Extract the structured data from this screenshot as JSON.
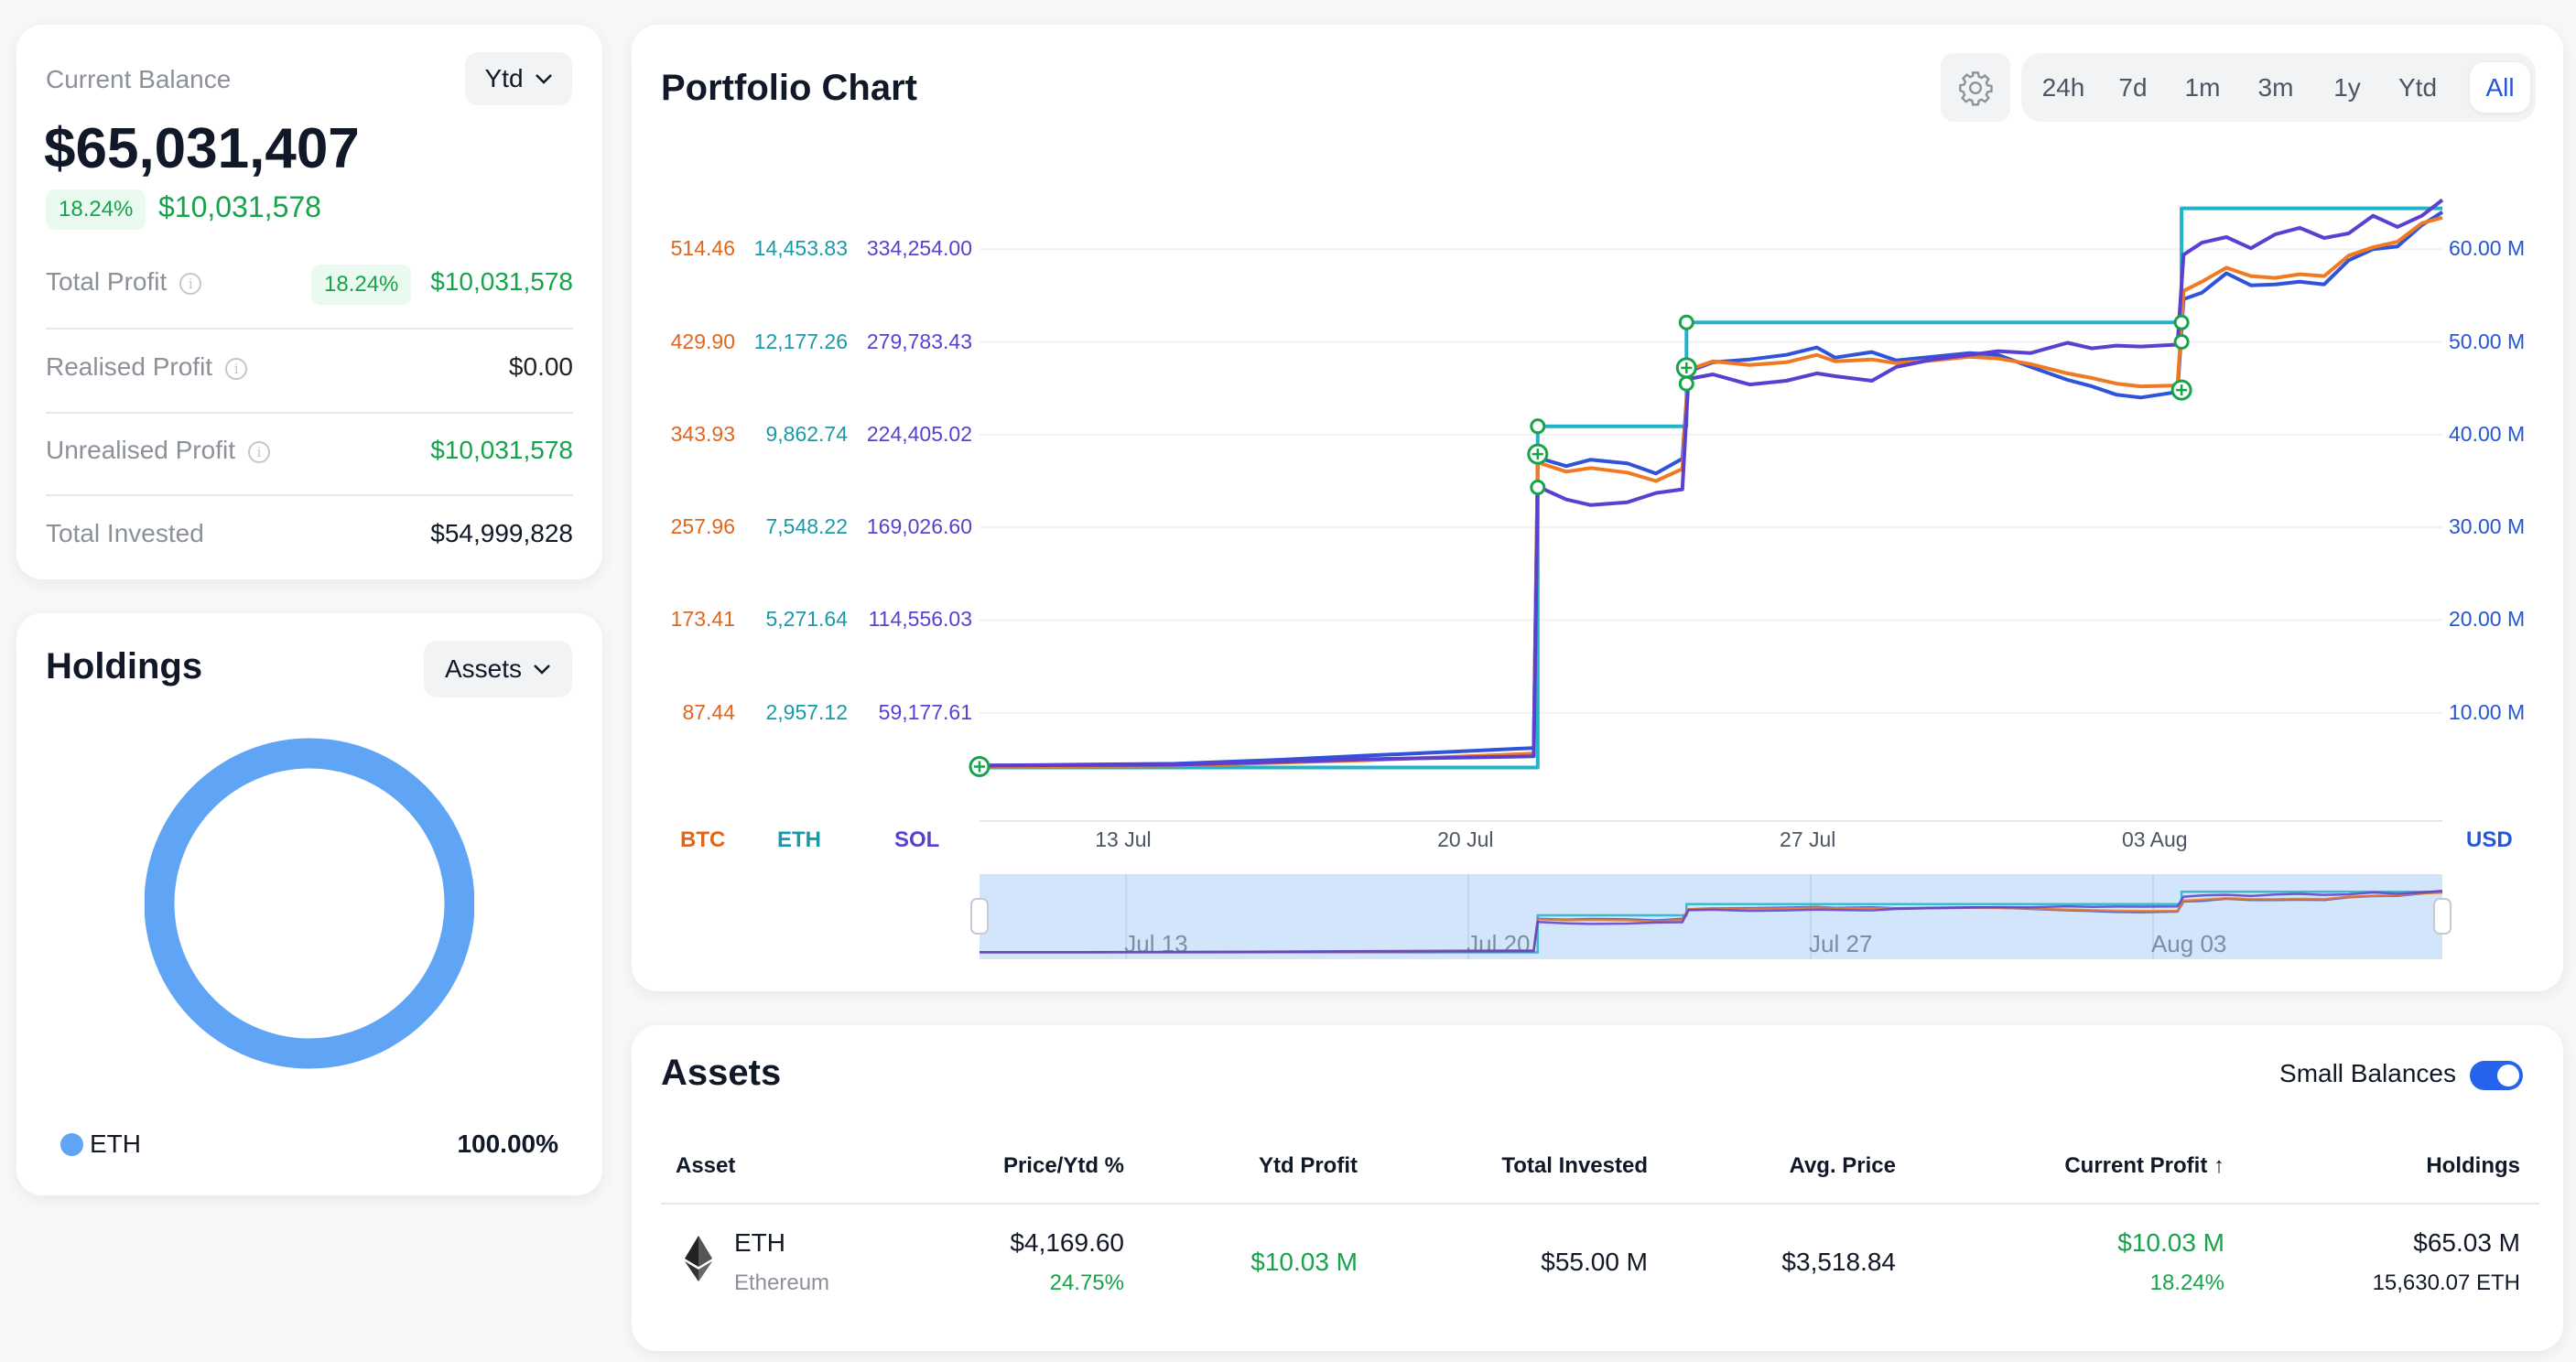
{
  "balance": {
    "label": "Current Balance",
    "period": "Ytd",
    "value": "$65,031,407",
    "change_pct": "18.24%",
    "change_value": "$10,031,578",
    "rows": [
      {
        "label": "Total Profit",
        "info": true,
        "badge": "18.24%",
        "value": "$10,031,578",
        "color": "green"
      },
      {
        "label": "Realised Profit",
        "info": true,
        "value": "$0.00",
        "color": "neutral"
      },
      {
        "label": "Unrealised Profit",
        "info": true,
        "value": "$10,031,578",
        "color": "green"
      },
      {
        "label": "Total Invested",
        "info": false,
        "value": "$54,999,828",
        "color": "neutral"
      }
    ]
  },
  "holdings": {
    "title": "Holdings",
    "selector": "Assets",
    "legend": [
      {
        "asset": "ETH",
        "percent": "100.00%",
        "color": "#60a5f5"
      }
    ],
    "donut_share": [
      100
    ]
  },
  "portfolio_chart": {
    "title": "Portfolio Chart",
    "settings_icon": "gear-icon",
    "ranges": [
      "24h",
      "7d",
      "1m",
      "3m",
      "1y",
      "Ytd",
      "All"
    ],
    "active_range": "All"
  },
  "chart_data": {
    "type": "line",
    "xlim": [
      "07-10 00:00",
      "08-08 22:00"
    ],
    "ylim": [
      0,
      70
    ],
    "y_unit": "M USD",
    "grid": true,
    "x_ticks": [
      "13 Jul",
      "20 Jul",
      "27 Jul",
      "03 Aug"
    ],
    "x_tick_dates": [
      "07-13 00:00",
      "07-20 00:00",
      "07-27 00:00",
      "08-03 00:00"
    ],
    "right_axis": {
      "label": "USD",
      "color": "#2456d6",
      "ticks": [
        "60.00 M",
        "50.00 M",
        "40.00 M",
        "30.00 M",
        "20.00 M",
        "10.00 M"
      ],
      "tick_values": [
        60,
        50,
        40,
        30,
        20,
        10
      ]
    },
    "left_axes": [
      {
        "label": "BTC",
        "color": "#e0661c",
        "ticks": [
          "514.46",
          "429.90",
          "343.93",
          "257.96",
          "173.41",
          "87.44"
        ]
      },
      {
        "label": "ETH",
        "color": "#1a9aa8",
        "ticks": [
          "14,453.83",
          "12,177.26",
          "9,862.74",
          "7,548.22",
          "5,271.64",
          "2,957.12"
        ]
      },
      {
        "label": "SOL",
        "color": "#5b3fd0",
        "ticks": [
          "334,254.00",
          "279,783.43",
          "224,405.02",
          "169,026.60",
          "114,556.03",
          "59,177.61"
        ]
      }
    ],
    "series": [
      {
        "color": "#22b3c9",
        "step": true,
        "points": [
          [
            "07-10 00:00",
            4.1
          ],
          [
            "07-21 10:00",
            4.1
          ],
          [
            "07-21 10:00",
            40.9
          ],
          [
            "07-24 11:00",
            40.9
          ],
          [
            "07-24 11:00",
            52.1
          ],
          [
            "08-03 14:00",
            52.1
          ],
          [
            "08-03 14:00",
            64.4
          ],
          [
            "08-08 22:00",
            64.4
          ]
        ]
      },
      {
        "color": "#2f54d9",
        "points": [
          [
            "07-10 00:00",
            4.3
          ],
          [
            "07-12 00:00",
            4.4
          ],
          [
            "07-14 00:00",
            4.5
          ],
          [
            "07-16 00:00",
            4.9
          ],
          [
            "07-18 00:00",
            5.4
          ],
          [
            "07-21 08:00",
            6.2
          ],
          [
            "07-21 10:00",
            37.5
          ],
          [
            "07-22 00:00",
            36.6
          ],
          [
            "07-22 12:00",
            37.3
          ],
          [
            "07-23 06:00",
            36.9
          ],
          [
            "07-23 20:00",
            35.8
          ],
          [
            "07-24 09:00",
            37.4
          ],
          [
            "07-24 12:00",
            46.8
          ],
          [
            "07-25 00:00",
            47.8
          ],
          [
            "07-25 18:00",
            48.1
          ],
          [
            "07-26 12:00",
            48.6
          ],
          [
            "07-27 03:00",
            49.4
          ],
          [
            "07-27 12:00",
            48.3
          ],
          [
            "07-28 06:00",
            48.9
          ],
          [
            "07-28 18:00",
            48.0
          ],
          [
            "07-29 12:00",
            48.4
          ],
          [
            "07-30 06:00",
            48.8
          ],
          [
            "07-30 20:00",
            48.6
          ],
          [
            "07-31 12:00",
            47.3
          ],
          [
            "08-01 06:00",
            45.9
          ],
          [
            "08-01 18:00",
            45.2
          ],
          [
            "08-02 06:00",
            44.3
          ],
          [
            "08-02 18:00",
            44.0
          ],
          [
            "08-03 12:00",
            44.6
          ],
          [
            "08-03 15:00",
            54.6
          ],
          [
            "08-04 00:00",
            55.3
          ],
          [
            "08-04 12:00",
            57.4
          ],
          [
            "08-05 00:00",
            56.1
          ],
          [
            "08-05 12:00",
            56.2
          ],
          [
            "08-06 00:00",
            56.5
          ],
          [
            "08-06 12:00",
            56.2
          ],
          [
            "08-07 00:00",
            58.8
          ],
          [
            "08-07 12:00",
            60.0
          ],
          [
            "08-08 00:00",
            60.3
          ],
          [
            "08-08 12:00",
            62.6
          ],
          [
            "08-08 22:00",
            64.0
          ]
        ]
      },
      {
        "color": "#f07a22",
        "points": [
          [
            "07-10 00:00",
            4.2
          ],
          [
            "07-14 00:00",
            4.3
          ],
          [
            "07-18 00:00",
            4.9
          ],
          [
            "07-21 08:00",
            5.6
          ],
          [
            "07-21 10:00",
            37.0
          ],
          [
            "07-22 00:00",
            36.0
          ],
          [
            "07-22 12:00",
            36.4
          ],
          [
            "07-23 06:00",
            35.9
          ],
          [
            "07-23 20:00",
            35.0
          ],
          [
            "07-24 09:00",
            36.3
          ],
          [
            "07-24 12:00",
            47.0
          ],
          [
            "07-25 00:00",
            47.9
          ],
          [
            "07-25 18:00",
            47.5
          ],
          [
            "07-26 12:00",
            47.8
          ],
          [
            "07-27 03:00",
            48.6
          ],
          [
            "07-27 12:00",
            47.9
          ],
          [
            "07-28 06:00",
            48.1
          ],
          [
            "07-28 18:00",
            47.7
          ],
          [
            "07-29 12:00",
            48.0
          ],
          [
            "07-30 06:00",
            48.4
          ],
          [
            "07-30 20:00",
            48.2
          ],
          [
            "07-31 12:00",
            47.6
          ],
          [
            "08-01 06:00",
            46.6
          ],
          [
            "08-01 18:00",
            46.1
          ],
          [
            "08-02 06:00",
            45.5
          ],
          [
            "08-02 18:00",
            45.2
          ],
          [
            "08-03 12:00",
            45.3
          ],
          [
            "08-03 15:00",
            55.5
          ],
          [
            "08-04 00:00",
            56.5
          ],
          [
            "08-04 12:00",
            58.0
          ],
          [
            "08-05 00:00",
            57.1
          ],
          [
            "08-05 12:00",
            56.9
          ],
          [
            "08-06 00:00",
            57.3
          ],
          [
            "08-06 12:00",
            57.1
          ],
          [
            "08-07 00:00",
            59.3
          ],
          [
            "08-07 12:00",
            60.2
          ],
          [
            "08-08 00:00",
            60.8
          ],
          [
            "08-08 12:00",
            62.8
          ],
          [
            "08-08 22:00",
            63.4
          ]
        ]
      },
      {
        "color": "#5b3fd0",
        "points": [
          [
            "07-10 00:00",
            4.3
          ],
          [
            "07-14 00:00",
            4.4
          ],
          [
            "07-18 00:00",
            5.0
          ],
          [
            "07-21 08:00",
            5.3
          ],
          [
            "07-21 10:00",
            34.4
          ],
          [
            "07-22 00:00",
            33.0
          ],
          [
            "07-22 12:00",
            32.4
          ],
          [
            "07-23 06:00",
            32.7
          ],
          [
            "07-23 20:00",
            33.7
          ],
          [
            "07-24 09:00",
            34.1
          ],
          [
            "07-24 12:00",
            46.0
          ],
          [
            "07-25 00:00",
            46.5
          ],
          [
            "07-25 18:00",
            45.4
          ],
          [
            "07-26 12:00",
            45.8
          ],
          [
            "07-27 03:00",
            46.6
          ],
          [
            "07-27 12:00",
            46.3
          ],
          [
            "07-28 06:00",
            45.8
          ],
          [
            "07-28 18:00",
            47.3
          ],
          [
            "07-29 12:00",
            48.1
          ],
          [
            "07-30 06:00",
            48.6
          ],
          [
            "07-30 20:00",
            49.0
          ],
          [
            "07-31 12:00",
            48.8
          ],
          [
            "08-01 06:00",
            49.9
          ],
          [
            "08-01 18:00",
            49.3
          ],
          [
            "08-02 06:00",
            49.6
          ],
          [
            "08-02 18:00",
            49.5
          ],
          [
            "08-03 12:00",
            49.7
          ],
          [
            "08-03 15:00",
            59.4
          ],
          [
            "08-04 00:00",
            60.7
          ],
          [
            "08-04 12:00",
            61.3
          ],
          [
            "08-05 00:00",
            60.1
          ],
          [
            "08-05 12:00",
            61.6
          ],
          [
            "08-06 00:00",
            62.3
          ],
          [
            "08-06 12:00",
            61.2
          ],
          [
            "08-07 00:00",
            61.7
          ],
          [
            "08-07 12:00",
            63.6
          ],
          [
            "08-08 00:00",
            62.4
          ],
          [
            "08-08 12:00",
            63.6
          ],
          [
            "08-08 22:00",
            65.3
          ]
        ]
      }
    ],
    "markers": [
      {
        "date": "07-10 00:00",
        "value": 4.2,
        "kind": "plus"
      },
      {
        "date": "07-21 10:00",
        "value": 40.9,
        "kind": "ring"
      },
      {
        "date": "07-21 10:00",
        "value": 37.9,
        "kind": "plus"
      },
      {
        "date": "07-21 10:00",
        "value": 34.3,
        "kind": "ring"
      },
      {
        "date": "07-24 11:00",
        "value": 52.1,
        "kind": "ring"
      },
      {
        "date": "07-24 11:00",
        "value": 47.2,
        "kind": "plus"
      },
      {
        "date": "07-24 11:00",
        "value": 45.5,
        "kind": "ring"
      },
      {
        "date": "08-03 14:00",
        "value": 52.1,
        "kind": "ring"
      },
      {
        "date": "08-03 14:00",
        "value": 50.0,
        "kind": "ring"
      },
      {
        "date": "08-03 14:00",
        "value": 44.8,
        "kind": "plus"
      }
    ],
    "navigator": {
      "labels": [
        "Jul 13",
        "Jul 20",
        "Jul 27",
        "Aug 03"
      ]
    }
  },
  "assets": {
    "title": "Assets",
    "small_balances_label": "Small Balances",
    "small_balances_on": true,
    "columns": [
      "Asset",
      "Price/Ytd %",
      "Ytd Profit",
      "Total Invested",
      "Avg. Price",
      "Current Profit ↑",
      "Holdings"
    ],
    "rows": [
      {
        "symbol": "ETH",
        "name": "Ethereum",
        "icon": "ethereum-icon",
        "price": "$4,169.60",
        "ytd_pct": "24.75%",
        "ytd_profit": "$10.03 M",
        "total_invested": "$55.00 M",
        "avg_price": "$3,518.84",
        "current_profit": "$10.03 M",
        "current_profit_pct": "18.24%",
        "holdings_value": "$65.03 M",
        "holdings_amount": "15,630.07 ETH"
      }
    ]
  }
}
